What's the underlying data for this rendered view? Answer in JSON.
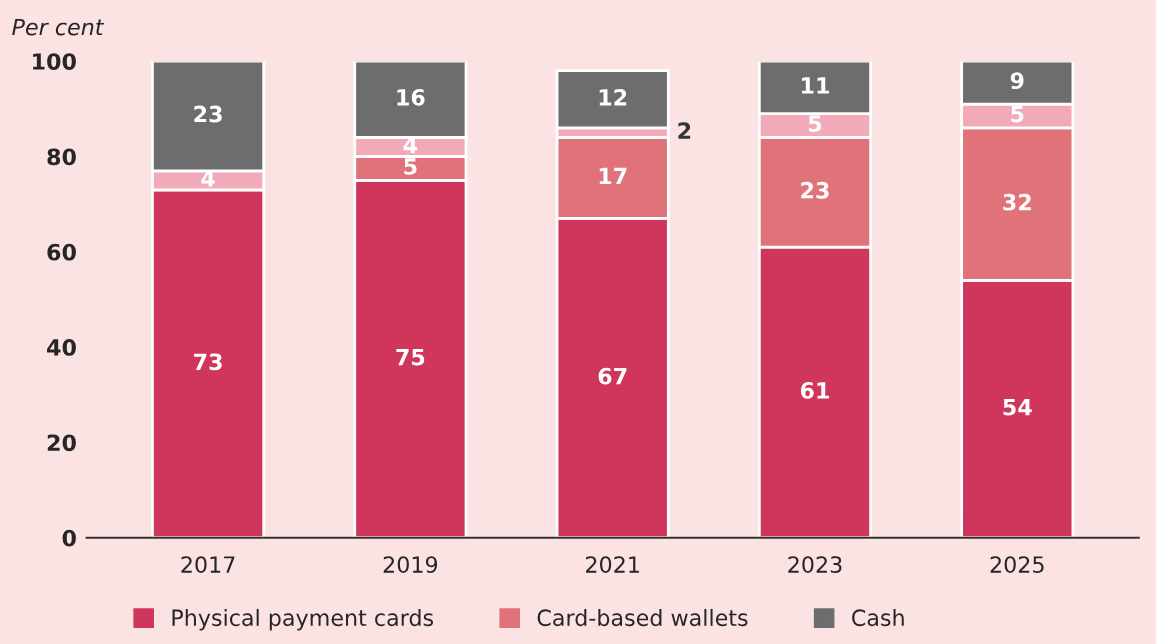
{
  "chart_data": {
    "type": "bar",
    "stacked": true,
    "ylabel": "Per cent",
    "categories": [
      "2017",
      "2019",
      "2021",
      "2023",
      "2025"
    ],
    "series": [
      {
        "name": "Physical payment cards",
        "color": "#d0355b",
        "values": [
          73,
          75,
          67,
          61,
          54
        ],
        "value_labels": [
          "73",
          "75",
          "67",
          "61",
          "54"
        ]
      },
      {
        "name": "Card-based wallets",
        "color": "#e0727a",
        "values": [
          0,
          5,
          17,
          23,
          32
        ],
        "value_labels": [
          null,
          "5",
          "17",
          "23",
          "32"
        ]
      },
      {
        "color": "#f2aab8",
        "values": [
          4,
          4,
          2,
          5,
          5
        ],
        "value_labels": [
          "4",
          "4",
          "2",
          "5",
          "5"
        ]
      },
      {
        "name": "Cash",
        "color": "#6d6d6d",
        "values": [
          23,
          16,
          12,
          11,
          9
        ],
        "value_labels": [
          "23",
          "16",
          "12",
          "11",
          "9"
        ]
      }
    ],
    "ylim": [
      0,
      100
    ],
    "yticks": [
      0,
      20,
      40,
      60,
      80,
      100
    ],
    "grid": false,
    "legend": "bottom"
  }
}
